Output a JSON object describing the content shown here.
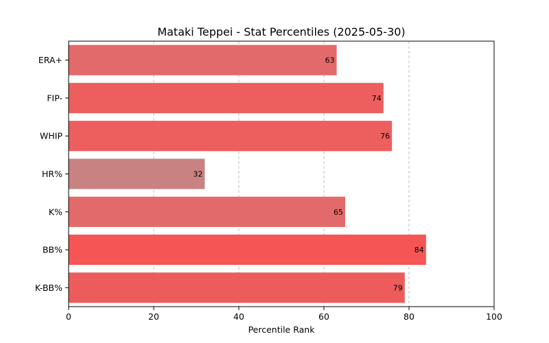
{
  "chart_data": {
    "type": "bar",
    "orientation": "horizontal",
    "title": "Mataki Teppei - Stat Percentiles (2025-05-30)",
    "xlabel": "Percentile Rank",
    "ylabel": "",
    "xlim": [
      0,
      100
    ],
    "xticks": [
      0,
      20,
      40,
      60,
      80,
      100
    ],
    "grid": "x-dashed",
    "categories": [
      "ERA+",
      "FIP-",
      "WHIP",
      "HR%",
      "K%",
      "BB%",
      "K-BB%"
    ],
    "values": [
      63,
      74,
      76,
      32,
      65,
      84,
      79
    ],
    "colors": [
      "#e36a6a",
      "#ed5f5f",
      "#ed5f5f",
      "#c98282",
      "#e36a6a",
      "#f55555",
      "#ec5c5c"
    ]
  }
}
